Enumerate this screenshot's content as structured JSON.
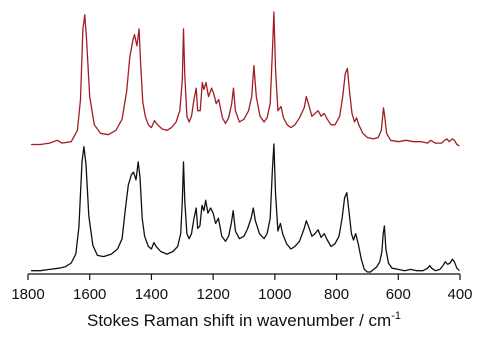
{
  "chart_data": {
    "type": "line",
    "title": "",
    "xlabel": "Stokes Raman shift in wavenumber / cm",
    "xlabel_superscript": "-1",
    "x_reversed": true,
    "xlim": [
      1800,
      400
    ],
    "x_ticks": [
      1800,
      1600,
      1400,
      1200,
      1000,
      800,
      600,
      400
    ],
    "x_tick_labels": [
      "1800",
      "1600",
      "1400",
      "1200",
      "1000",
      "800",
      "600",
      "400"
    ],
    "ylabel": "",
    "y_axis_shown": false,
    "grid": false,
    "legend": "none",
    "series": [
      {
        "color": "#a01e24",
        "position": "upper",
        "points": [
          [
            1790,
            0.06
          ],
          [
            1760,
            0.06
          ],
          [
            1730,
            0.07
          ],
          [
            1705,
            0.09
          ],
          [
            1690,
            0.07
          ],
          [
            1660,
            0.08
          ],
          [
            1640,
            0.16
          ],
          [
            1630,
            0.38
          ],
          [
            1622,
            0.88
          ],
          [
            1616,
            0.98
          ],
          [
            1610,
            0.8
          ],
          [
            1600,
            0.4
          ],
          [
            1585,
            0.2
          ],
          [
            1565,
            0.14
          ],
          [
            1540,
            0.13
          ],
          [
            1515,
            0.16
          ],
          [
            1495,
            0.24
          ],
          [
            1480,
            0.44
          ],
          [
            1470,
            0.68
          ],
          [
            1460,
            0.8
          ],
          [
            1455,
            0.84
          ],
          [
            1447,
            0.76
          ],
          [
            1440,
            0.88
          ],
          [
            1435,
            0.64
          ],
          [
            1428,
            0.36
          ],
          [
            1420,
            0.26
          ],
          [
            1410,
            0.2
          ],
          [
            1400,
            0.18
          ],
          [
            1390,
            0.23
          ],
          [
            1380,
            0.2
          ],
          [
            1365,
            0.17
          ],
          [
            1350,
            0.16
          ],
          [
            1335,
            0.18
          ],
          [
            1320,
            0.22
          ],
          [
            1308,
            0.3
          ],
          [
            1300,
            0.52
          ],
          [
            1296,
            0.88
          ],
          [
            1292,
            0.55
          ],
          [
            1285,
            0.26
          ],
          [
            1278,
            0.22
          ],
          [
            1270,
            0.26
          ],
          [
            1262,
            0.38
          ],
          [
            1255,
            0.46
          ],
          [
            1250,
            0.3
          ],
          [
            1242,
            0.3
          ],
          [
            1235,
            0.5
          ],
          [
            1230,
            0.45
          ],
          [
            1223,
            0.5
          ],
          [
            1215,
            0.4
          ],
          [
            1205,
            0.46
          ],
          [
            1198,
            0.42
          ],
          [
            1190,
            0.35
          ],
          [
            1182,
            0.38
          ],
          [
            1170,
            0.25
          ],
          [
            1160,
            0.21
          ],
          [
            1150,
            0.25
          ],
          [
            1140,
            0.35
          ],
          [
            1134,
            0.46
          ],
          [
            1128,
            0.3
          ],
          [
            1115,
            0.22
          ],
          [
            1100,
            0.24
          ],
          [
            1085,
            0.3
          ],
          [
            1075,
            0.4
          ],
          [
            1068,
            0.62
          ],
          [
            1060,
            0.4
          ],
          [
            1048,
            0.26
          ],
          [
            1035,
            0.22
          ],
          [
            1025,
            0.25
          ],
          [
            1015,
            0.35
          ],
          [
            1008,
            0.72
          ],
          [
            1003,
            1.0
          ],
          [
            998,
            0.6
          ],
          [
            990,
            0.3
          ],
          [
            980,
            0.33
          ],
          [
            972,
            0.25
          ],
          [
            960,
            0.2
          ],
          [
            948,
            0.18
          ],
          [
            935,
            0.2
          ],
          [
            920,
            0.25
          ],
          [
            905,
            0.32
          ],
          [
            898,
            0.4
          ],
          [
            890,
            0.34
          ],
          [
            880,
            0.26
          ],
          [
            870,
            0.28
          ],
          [
            860,
            0.3
          ],
          [
            850,
            0.26
          ],
          [
            840,
            0.28
          ],
          [
            830,
            0.24
          ],
          [
            818,
            0.2
          ],
          [
            805,
            0.2
          ],
          [
            790,
            0.26
          ],
          [
            780,
            0.4
          ],
          [
            772,
            0.56
          ],
          [
            765,
            0.6
          ],
          [
            758,
            0.44
          ],
          [
            750,
            0.28
          ],
          [
            742,
            0.22
          ],
          [
            735,
            0.25
          ],
          [
            728,
            0.2
          ],
          [
            715,
            0.14
          ],
          [
            700,
            0.11
          ],
          [
            680,
            0.1
          ],
          [
            665,
            0.11
          ],
          [
            655,
            0.16
          ],
          [
            648,
            0.32
          ],
          [
            644,
            0.26
          ],
          [
            638,
            0.14
          ],
          [
            625,
            0.09
          ],
          [
            600,
            0.08
          ],
          [
            575,
            0.09
          ],
          [
            550,
            0.08
          ],
          [
            525,
            0.08
          ],
          [
            505,
            0.07
          ],
          [
            495,
            0.09
          ],
          [
            480,
            0.07
          ],
          [
            460,
            0.07
          ],
          [
            450,
            0.09
          ],
          [
            442,
            0.1
          ],
          [
            435,
            0.08
          ],
          [
            425,
            0.1
          ],
          [
            418,
            0.09
          ],
          [
            410,
            0.06
          ],
          [
            402,
            0.05
          ]
        ]
      },
      {
        "color": "#111111",
        "position": "lower",
        "points": [
          [
            1790,
            0.01
          ],
          [
            1760,
            0.01
          ],
          [
            1730,
            0.02
          ],
          [
            1700,
            0.03
          ],
          [
            1680,
            0.04
          ],
          [
            1660,
            0.07
          ],
          [
            1645,
            0.14
          ],
          [
            1635,
            0.35
          ],
          [
            1625,
            0.86
          ],
          [
            1619,
            0.98
          ],
          [
            1612,
            0.84
          ],
          [
            1603,
            0.44
          ],
          [
            1590,
            0.21
          ],
          [
            1575,
            0.13
          ],
          [
            1555,
            0.12
          ],
          [
            1530,
            0.14
          ],
          [
            1510,
            0.18
          ],
          [
            1495,
            0.26
          ],
          [
            1485,
            0.48
          ],
          [
            1475,
            0.68
          ],
          [
            1465,
            0.76
          ],
          [
            1458,
            0.78
          ],
          [
            1450,
            0.72
          ],
          [
            1443,
            0.86
          ],
          [
            1437,
            0.74
          ],
          [
            1430,
            0.42
          ],
          [
            1422,
            0.28
          ],
          [
            1410,
            0.2
          ],
          [
            1400,
            0.18
          ],
          [
            1392,
            0.23
          ],
          [
            1385,
            0.2
          ],
          [
            1370,
            0.16
          ],
          [
            1350,
            0.14
          ],
          [
            1330,
            0.16
          ],
          [
            1315,
            0.2
          ],
          [
            1305,
            0.3
          ],
          [
            1300,
            0.55
          ],
          [
            1296,
            0.86
          ],
          [
            1292,
            0.55
          ],
          [
            1285,
            0.3
          ],
          [
            1278,
            0.26
          ],
          [
            1270,
            0.3
          ],
          [
            1262,
            0.42
          ],
          [
            1255,
            0.5
          ],
          [
            1250,
            0.34
          ],
          [
            1243,
            0.36
          ],
          [
            1236,
            0.52
          ],
          [
            1230,
            0.48
          ],
          [
            1224,
            0.56
          ],
          [
            1217,
            0.46
          ],
          [
            1208,
            0.5
          ],
          [
            1200,
            0.46
          ],
          [
            1192,
            0.38
          ],
          [
            1183,
            0.42
          ],
          [
            1172,
            0.28
          ],
          [
            1160,
            0.24
          ],
          [
            1150,
            0.28
          ],
          [
            1141,
            0.38
          ],
          [
            1135,
            0.48
          ],
          [
            1128,
            0.32
          ],
          [
            1115,
            0.26
          ],
          [
            1100,
            0.28
          ],
          [
            1088,
            0.34
          ],
          [
            1077,
            0.42
          ],
          [
            1070,
            0.5
          ],
          [
            1063,
            0.4
          ],
          [
            1050,
            0.3
          ],
          [
            1035,
            0.26
          ],
          [
            1025,
            0.3
          ],
          [
            1015,
            0.42
          ],
          [
            1008,
            0.8
          ],
          [
            1003,
            1.0
          ],
          [
            998,
            0.62
          ],
          [
            990,
            0.32
          ],
          [
            982,
            0.38
          ],
          [
            975,
            0.3
          ],
          [
            962,
            0.22
          ],
          [
            948,
            0.18
          ],
          [
            935,
            0.2
          ],
          [
            920,
            0.24
          ],
          [
            905,
            0.34
          ],
          [
            898,
            0.4
          ],
          [
            890,
            0.35
          ],
          [
            880,
            0.28
          ],
          [
            870,
            0.3
          ],
          [
            860,
            0.33
          ],
          [
            850,
            0.27
          ],
          [
            840,
            0.3
          ],
          [
            830,
            0.25
          ],
          [
            818,
            0.2
          ],
          [
            805,
            0.22
          ],
          [
            792,
            0.28
          ],
          [
            782,
            0.42
          ],
          [
            774,
            0.58
          ],
          [
            767,
            0.62
          ],
          [
            760,
            0.48
          ],
          [
            752,
            0.3
          ],
          [
            745,
            0.25
          ],
          [
            738,
            0.3
          ],
          [
            730,
            0.22
          ],
          [
            720,
            0.1
          ],
          [
            710,
            0.02
          ],
          [
            700,
            0.0
          ],
          [
            690,
            0.0
          ],
          [
            680,
            0.02
          ],
          [
            670,
            0.04
          ],
          [
            660,
            0.08
          ],
          [
            653,
            0.16
          ],
          [
            649,
            0.3
          ],
          [
            645,
            0.36
          ],
          [
            640,
            0.18
          ],
          [
            632,
            0.07
          ],
          [
            620,
            0.03
          ],
          [
            600,
            0.02
          ],
          [
            580,
            0.01
          ],
          [
            560,
            0.02
          ],
          [
            540,
            0.01
          ],
          [
            520,
            0.01
          ],
          [
            505,
            0.03
          ],
          [
            498,
            0.05
          ],
          [
            492,
            0.03
          ],
          [
            480,
            0.01
          ],
          [
            465,
            0.02
          ],
          [
            455,
            0.05
          ],
          [
            448,
            0.08
          ],
          [
            440,
            0.06
          ],
          [
            432,
            0.07
          ],
          [
            425,
            0.1
          ],
          [
            418,
            0.08
          ],
          [
            410,
            0.03
          ],
          [
            402,
            0.01
          ]
        ]
      }
    ]
  }
}
